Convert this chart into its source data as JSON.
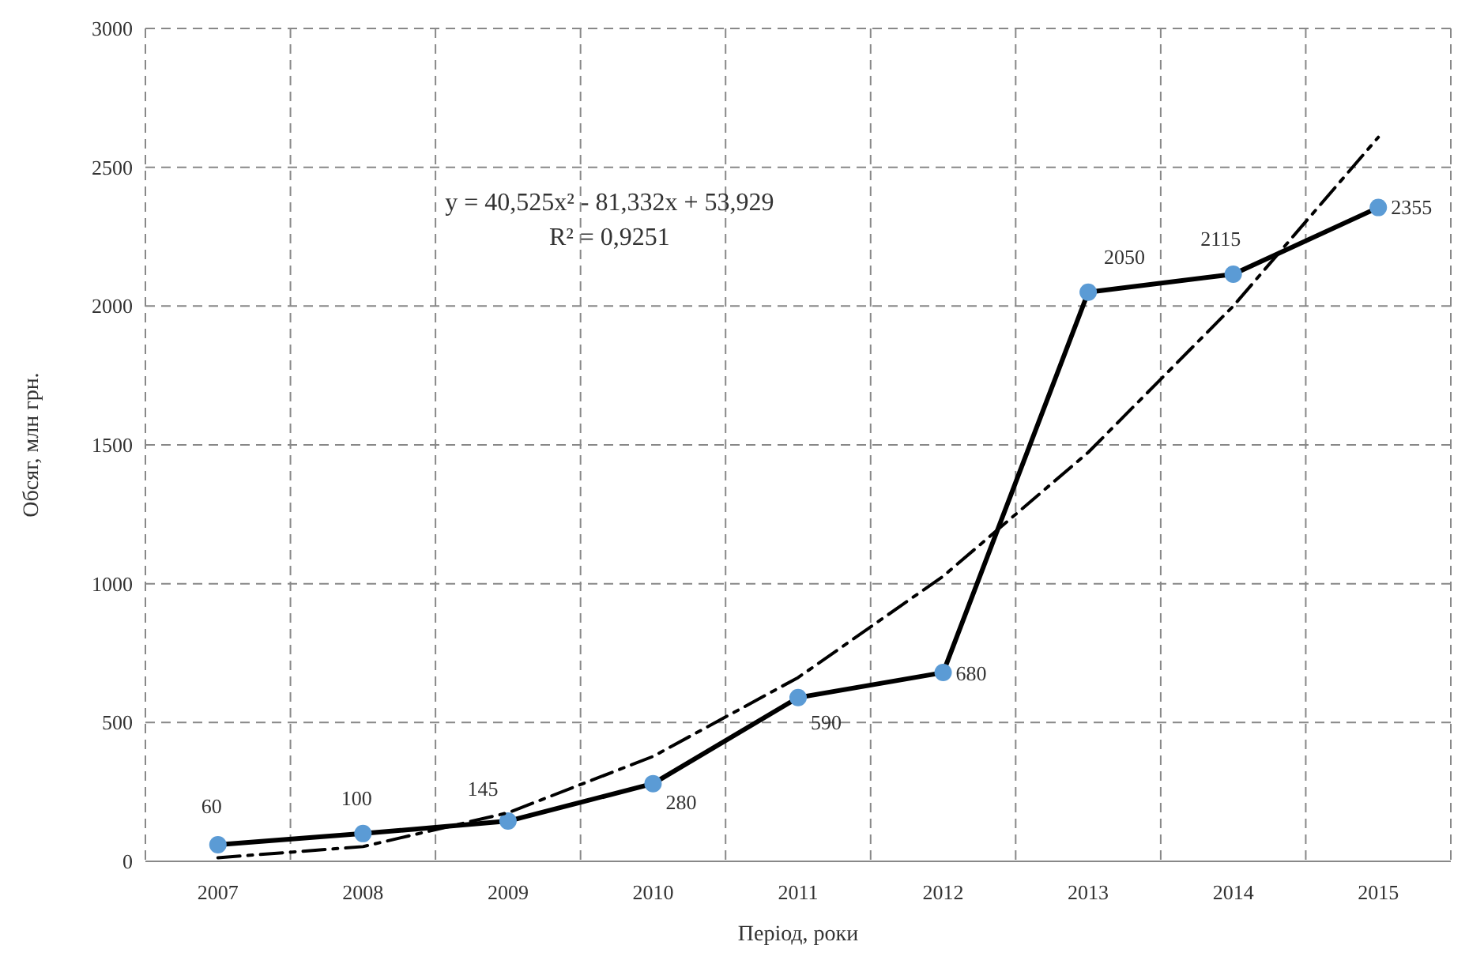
{
  "chart_data": {
    "type": "line",
    "xlabel": "Період, роки",
    "ylabel": "Обсяг, млн грн.",
    "categories": [
      "2007",
      "2008",
      "2009",
      "2010",
      "2011",
      "2012",
      "2013",
      "2014",
      "2015"
    ],
    "series": [
      {
        "color": "#000000",
        "colors": [
          "#5b9bd5",
          "#5b9bd5",
          "#5b9bd5",
          "#5b9bd5",
          "#5b9bd5",
          "#5b9bd5",
          "#5b9bd5",
          "#5b9bd5",
          "#5b9bd5"
        ],
        "marker": "circle",
        "line_style": "solid",
        "values": [
          60,
          100,
          145,
          280,
          590,
          680,
          2050,
          2115,
          2355
        ],
        "data_labels": true
      },
      {
        "color": "#000000",
        "marker": "none",
        "line_style": "dashed",
        "values": [
          13,
          53,
          175,
          378,
          662,
          1027,
          1473,
          2000,
          2608
        ]
      }
    ],
    "ylim": [
      0,
      3000
    ],
    "yticks": [
      0,
      500,
      1000,
      1500,
      2000,
      2500,
      3000
    ],
    "grid": true,
    "annotations": [
      "y = 40,525x² - 81,332x + 53,929",
      "R² = 0,9251"
    ]
  }
}
